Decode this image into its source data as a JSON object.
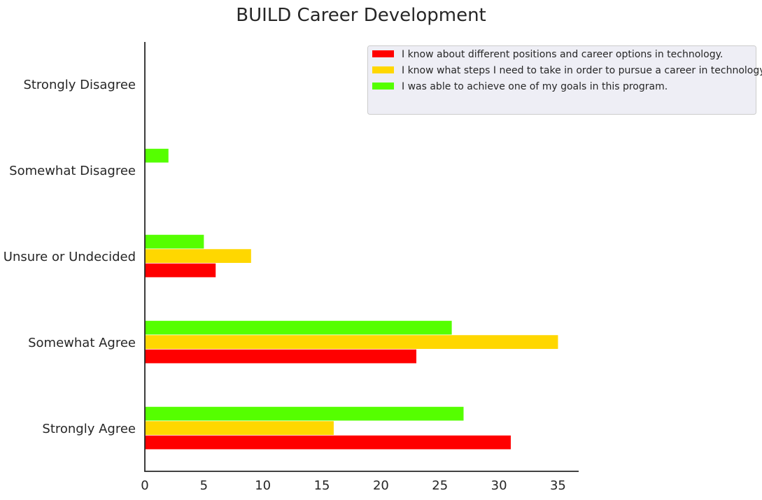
{
  "chart_data": {
    "type": "bar",
    "orientation": "horizontal",
    "title": "BUILD Career Development",
    "xlabel": "",
    "ylabel": "",
    "categories": [
      "Strongly Agree",
      "Somewhat Agree",
      "Unsure or Undecided",
      "Somewhat Disagree",
      "Strongly Disagree"
    ],
    "series": [
      {
        "name": "I know about different positions and career options in technology.",
        "color": "#ff0000",
        "values": [
          31,
          23,
          6,
          0,
          0
        ]
      },
      {
        "name": "I know what steps I need to take in order to pursue a career in technology.",
        "color": "#ffd700",
        "values": [
          16,
          35,
          9,
          0,
          0
        ]
      },
      {
        "name": "I was able to achieve one of my goals in this program.",
        "color": "#55ff00",
        "values": [
          27,
          26,
          5,
          2,
          0
        ]
      }
    ],
    "xlim": [
      0,
      36.8
    ],
    "xticks": [
      0,
      5,
      10,
      15,
      20,
      25,
      30,
      35
    ],
    "grid": false,
    "legend_position": "top-right"
  }
}
